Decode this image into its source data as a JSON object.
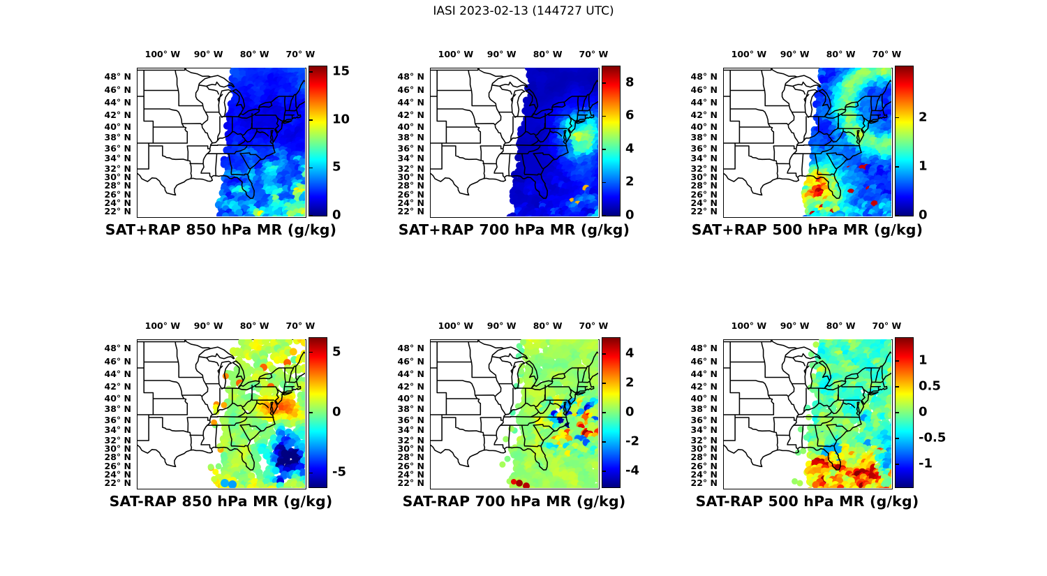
{
  "figure_title": "IASI 2023-02-13 (144727 UTC)",
  "instrument": "IASI",
  "date": "2023-02-13",
  "time_utc": "144727",
  "map_region": "Eastern United States",
  "colors": {
    "background": "#ffffff",
    "map_lines": "#000000",
    "colormap": "jet"
  },
  "axes": {
    "lon_labels": [
      "100° W",
      "90° W",
      "80° W",
      "70° W"
    ],
    "lon_ticks_degW": [
      100,
      90,
      80,
      70
    ],
    "lat_labels": [
      "48° N",
      "46° N",
      "44° N",
      "42° N",
      "40° N",
      "38° N",
      "36° N",
      "34° N",
      "32° N",
      "30° N",
      "28° N",
      "26° N",
      "24° N",
      "22° N"
    ],
    "lat_ticks_degN": [
      48,
      46,
      44,
      42,
      40,
      38,
      36,
      34,
      32,
      30,
      28,
      26,
      24,
      22
    ],
    "lon_range_degW": [
      105.6,
      69.0
    ],
    "lat_range_degN": [
      20.9,
      49.4
    ]
  },
  "chart_data": [
    {
      "type": "heatmap",
      "title": "SAT+RAP 850 hPa MR (g/kg)",
      "dataset": "SAT+RAP",
      "level_hPa": 850,
      "variable": "MR",
      "units": "g/kg",
      "colorbar": {
        "min": 0,
        "max": 15.6,
        "ticks": [
          0,
          5,
          10,
          15
        ]
      },
      "swath_summary": "Solid satellite swath east of ~85W; mostly dark navy (0-2 g/kg) over land, brighter blue in the north, cyan-green-yellow streaks (4-10 g/kg) over the subtropical Atlantic in the southeast corner."
    },
    {
      "type": "heatmap",
      "title": "SAT+RAP 700 hPa MR (g/kg)",
      "dataset": "SAT+RAP",
      "level_hPa": 700,
      "variable": "MR",
      "units": "g/kg",
      "colorbar": {
        "min": 0,
        "max": 9.0,
        "ticks": [
          0,
          2,
          4,
          6,
          8
        ]
      },
      "swath_summary": "Very dark navy swath (<1 g/kg) with a green-yellow moist patch (5-6 g/kg) off the mid-Atlantic coast, cyan fringes, and a few red specks near the bottom edge."
    },
    {
      "type": "heatmap",
      "title": "SAT+RAP 500 hPa MR (g/kg)",
      "dataset": "SAT+RAP",
      "level_hPa": 500,
      "variable": "MR",
      "units": "g/kg",
      "colorbar": {
        "min": 0,
        "max": 3.05,
        "ticks": [
          0,
          1,
          2
        ]
      },
      "swath_summary": "Mottled blue swath with a cyan spiral off New England, a yellow-orange moist blob (1.5-2.5 g/kg) over the Gulf/Florida, and red-speckled streaks along the southern edge."
    },
    {
      "type": "heatmap",
      "title": "SAT-RAP 850 hPa MR (g/kg)",
      "dataset": "SAT-RAP",
      "level_hPa": 850,
      "variable": "MR",
      "units": "g/kg",
      "colorbar": {
        "min": -6.2,
        "max": 6.2,
        "ticks": [
          -5,
          0,
          5
        ]
      },
      "swath_summary": "Patchy difference field near 0 (green) with yellow-orange speckles in the north, an orange streak off the mid-Atlantic coast, scattered cyan-to-navy negative patches over the southwest Atlantic, and two blue dots at the bottom edge."
    },
    {
      "type": "heatmap",
      "title": "SAT-RAP 700 hPa MR (g/kg)",
      "dataset": "SAT-RAP",
      "level_hPa": 700,
      "variable": "MR",
      "units": "g/kg",
      "colorbar": {
        "min": -5.1,
        "max": 5.1,
        "ticks": [
          -4,
          -2,
          0,
          2,
          4
        ]
      },
      "swath_summary": "Mostly uniform light-green (near-zero) differences; paired orange/blue Gulf-Stream streaks off the coast and small dark-red arcs at the bottom edge."
    },
    {
      "type": "heatmap",
      "title": "SAT-RAP 500 hPa MR (g/kg)",
      "dataset": "SAT-RAP",
      "level_hPa": 500,
      "variable": "MR",
      "units": "g/kg",
      "colorbar": {
        "min": -1.45,
        "max": 1.45,
        "ticks": [
          -1,
          -0.5,
          0,
          0.5,
          1
        ]
      },
      "swath_summary": "Cyan-teal mottled field with white gaps, scattered blue negative specks, and wavy yellow-orange-red positive streaks (with dark-red arcs) across the southern quarter; dark-blue streak at the lower right edge."
    }
  ]
}
